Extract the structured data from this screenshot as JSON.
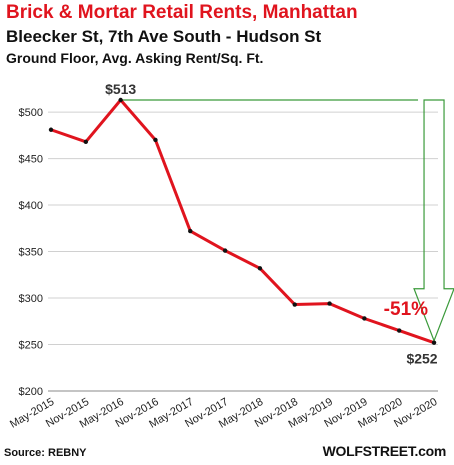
{
  "header": {
    "title": "Brick & Mortar Retail Rents, Manhattan",
    "subtitle": "Bleecker St, 7th Ave South - Hudson St",
    "subtitle2": "Ground Floor, Avg. Asking Rent/Sq. Ft."
  },
  "footer": {
    "source": "Source: REBNY",
    "brand": "WOLFSTREET.com"
  },
  "colors": {
    "line": "#e0141e",
    "title": "#e0141e",
    "arrow": "#3a9a3a",
    "grid": "#d0d0d0"
  },
  "chart_data": {
    "type": "line",
    "title": "Brick & Mortar Retail Rents, Manhattan",
    "subtitle": "Bleecker St, 7th Ave South - Hudson St",
    "ylabel": "Ground Floor, Avg. Asking Rent/Sq. Ft.",
    "xlabel": "",
    "ylim": [
      200,
      500
    ],
    "y_ticks": [
      "$200",
      "$250",
      "$300",
      "$350",
      "$400",
      "$450",
      "$500"
    ],
    "y_tick_values": [
      200,
      250,
      300,
      350,
      400,
      450,
      500
    ],
    "categories": [
      "May-2015",
      "Nov-2015",
      "May-2016",
      "Nov-2016",
      "May-2017",
      "Nov-2017",
      "May-2018",
      "Nov-2018",
      "May-2019",
      "Nov-2019",
      "May-2020",
      "Nov-2020"
    ],
    "series": [
      {
        "name": "",
        "values": [
          481,
          468,
          513,
          470,
          372,
          351,
          332,
          293,
          294,
          278,
          265,
          252
        ]
      }
    ],
    "grid": true,
    "annotations": {
      "peak_label": "$513",
      "end_label": "$252",
      "change_label": "-51%"
    }
  }
}
